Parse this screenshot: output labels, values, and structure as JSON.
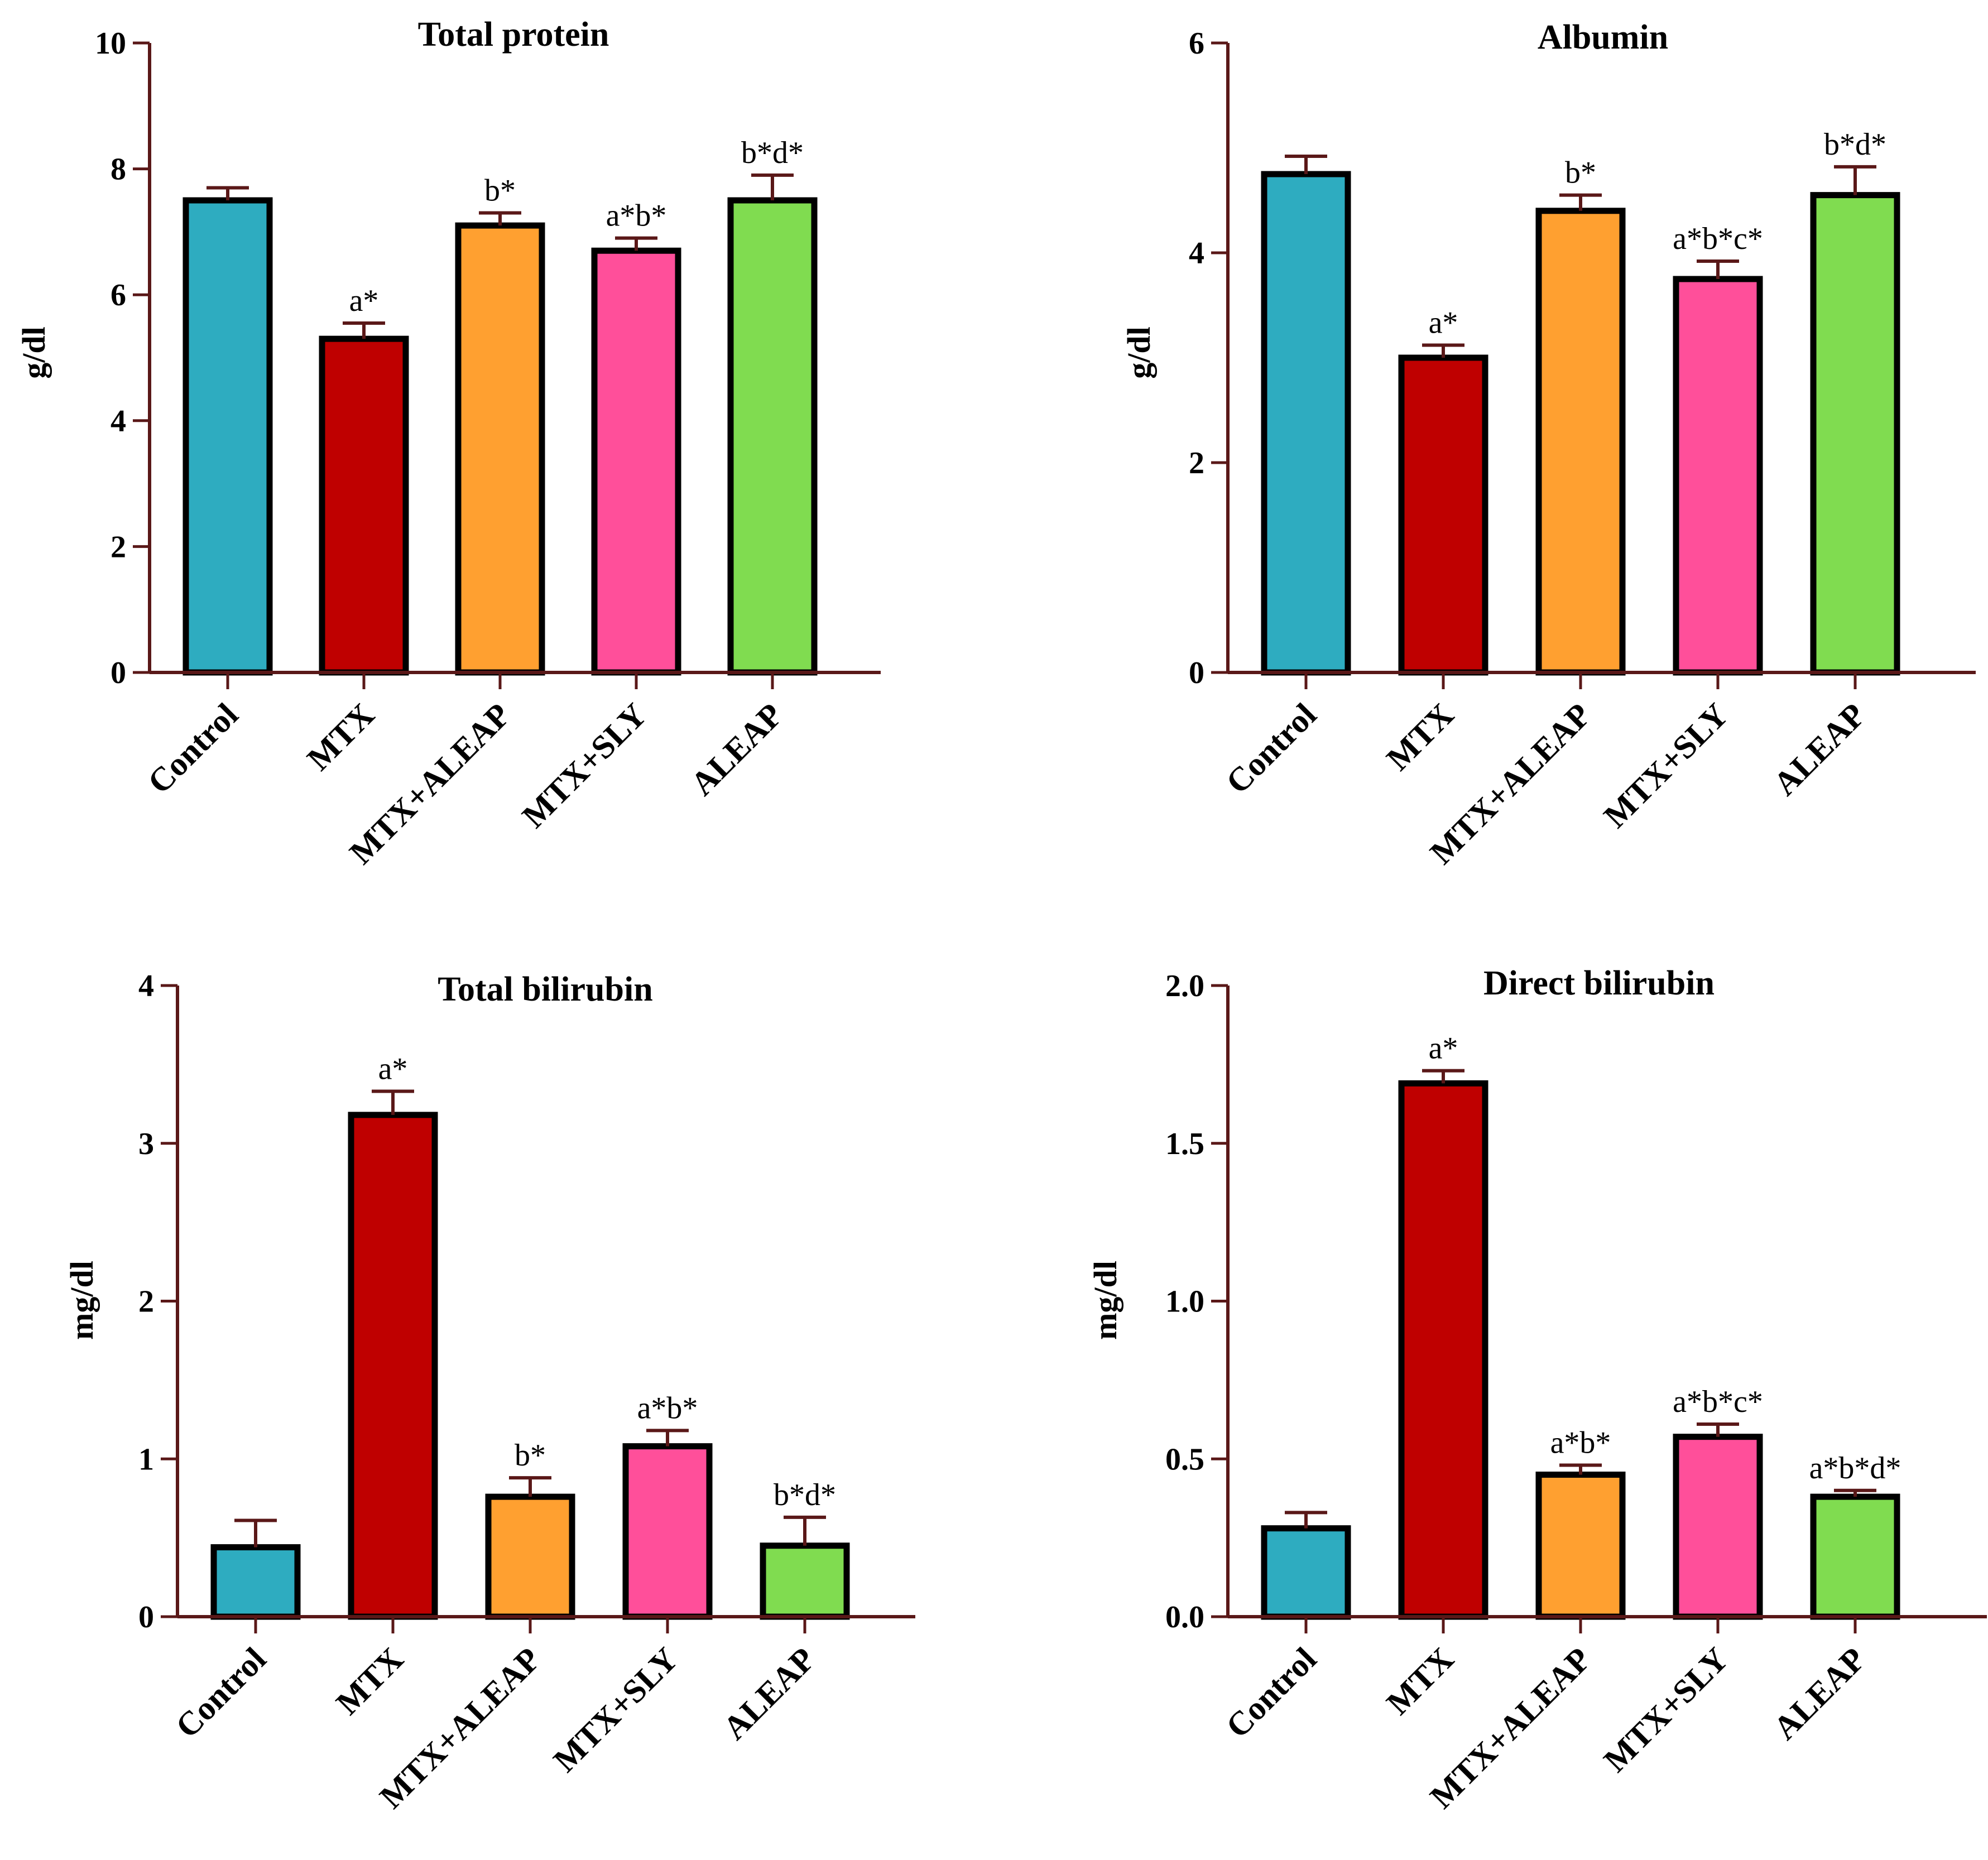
{
  "chart_data": [
    {
      "type": "bar",
      "title": "Total protein",
      "xlabel": "",
      "ylabel": "g/dl",
      "ylim": [
        0,
        10
      ],
      "yticks": [
        0,
        2,
        4,
        6,
        8,
        10
      ],
      "ytick_labels": [
        "0",
        "2",
        "4",
        "6",
        "8",
        "10"
      ],
      "categories": [
        "Control",
        "MTX",
        "MTX+ALEAP",
        "MTX+SLY",
        "ALEAP"
      ],
      "values": [
        7.5,
        5.3,
        7.1,
        6.7,
        7.5
      ],
      "errors": [
        0.2,
        0.25,
        0.2,
        0.2,
        0.4
      ],
      "annotations": [
        "",
        "a*",
        "b*",
        "a*b*",
        "b*d*"
      ]
    },
    {
      "type": "bar",
      "title": "Albumin",
      "xlabel": "",
      "ylabel": "g/dl",
      "ylim": [
        0,
        6
      ],
      "yticks": [
        0,
        2,
        4,
        6
      ],
      "ytick_labels": [
        "0",
        "2",
        "4",
        "6"
      ],
      "categories": [
        "Control",
        "MTX",
        "MTX+ALEAP",
        "MTX+SLY",
        "ALEAP"
      ],
      "values": [
        4.75,
        3.0,
        4.4,
        3.75,
        4.55
      ],
      "errors": [
        0.17,
        0.12,
        0.15,
        0.17,
        0.27
      ],
      "annotations": [
        "",
        "a*",
        "b*",
        "a*b*c*",
        "b*d*"
      ]
    },
    {
      "type": "bar",
      "title": "Total bilirubin",
      "xlabel": "",
      "ylabel": "mg/dl",
      "ylim": [
        0,
        4
      ],
      "yticks": [
        0,
        1,
        2,
        3,
        4
      ],
      "ytick_labels": [
        "0",
        "1",
        "2",
        "3",
        "4"
      ],
      "categories": [
        "Control",
        "MTX",
        "MTX+ALEAP",
        "MTX+SLY",
        "ALEAP"
      ],
      "values": [
        0.44,
        3.18,
        0.76,
        1.08,
        0.45
      ],
      "errors": [
        0.17,
        0.15,
        0.12,
        0.1,
        0.18
      ],
      "annotations": [
        "",
        "a*",
        "b*",
        "a*b*",
        "b*d*"
      ]
    },
    {
      "type": "bar",
      "title": "Direct bilirubin",
      "xlabel": "",
      "ylabel": "mg/dl",
      "ylim": [
        0,
        2.0
      ],
      "yticks": [
        0,
        0.5,
        1.0,
        1.5,
        2.0
      ],
      "ytick_labels": [
        "0.0",
        "0.5",
        "1.0",
        "1.5",
        "2.0"
      ],
      "categories": [
        "Control",
        "MTX",
        "MTX+ALEAP",
        "MTX+SLY",
        "ALEAP"
      ],
      "values": [
        0.28,
        1.69,
        0.45,
        0.57,
        0.38
      ],
      "errors": [
        0.05,
        0.04,
        0.03,
        0.04,
        0.02
      ],
      "annotations": [
        "",
        "a*",
        "a*b*",
        "a*b*c*",
        "a*b*d*"
      ]
    }
  ],
  "colors": {
    "bars": [
      "#2eacc0",
      "#bf0000",
      "#ffa030",
      "#ff4f9a",
      "#80dc50"
    ],
    "axis": "#5a1818",
    "outline": "#000000"
  }
}
